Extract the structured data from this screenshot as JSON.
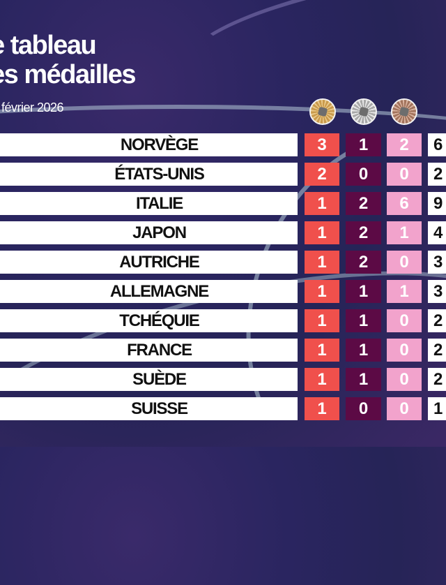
{
  "header": {
    "title_line1": "e tableau",
    "title_line2": "es médailles",
    "date": "février 2026"
  },
  "medal_icons": [
    "gold-medal",
    "silver-medal",
    "bronze-medal"
  ],
  "colors": {
    "gold_cell": "#f0504c",
    "silver_cell": "#5c0a45",
    "bronze_cell": "#f2a3cc",
    "background": "#2a2560"
  },
  "rows": [
    {
      "country": "NORVÈGE",
      "gold": "3",
      "silver": "1",
      "bronze": "2",
      "total": "6"
    },
    {
      "country": "ÉTATS-UNIS",
      "gold": "2",
      "silver": "0",
      "bronze": "0",
      "total": "2"
    },
    {
      "country": "ITALIE",
      "gold": "1",
      "silver": "2",
      "bronze": "6",
      "total": "9"
    },
    {
      "country": "JAPON",
      "gold": "1",
      "silver": "2",
      "bronze": "1",
      "total": "4"
    },
    {
      "country": "AUTRICHE",
      "gold": "1",
      "silver": "2",
      "bronze": "0",
      "total": "3"
    },
    {
      "country": "ALLEMAGNE",
      "gold": "1",
      "silver": "1",
      "bronze": "1",
      "total": "3"
    },
    {
      "country": "TCHÉQUIE",
      "gold": "1",
      "silver": "1",
      "bronze": "0",
      "total": "2"
    },
    {
      "country": "FRANCE",
      "gold": "1",
      "silver": "1",
      "bronze": "0",
      "total": "2"
    },
    {
      "country": "SUÈDE",
      "gold": "1",
      "silver": "1",
      "bronze": "0",
      "total": "2"
    },
    {
      "country": "SUISSE",
      "gold": "1",
      "silver": "0",
      "bronze": "0",
      "total": "1"
    }
  ]
}
